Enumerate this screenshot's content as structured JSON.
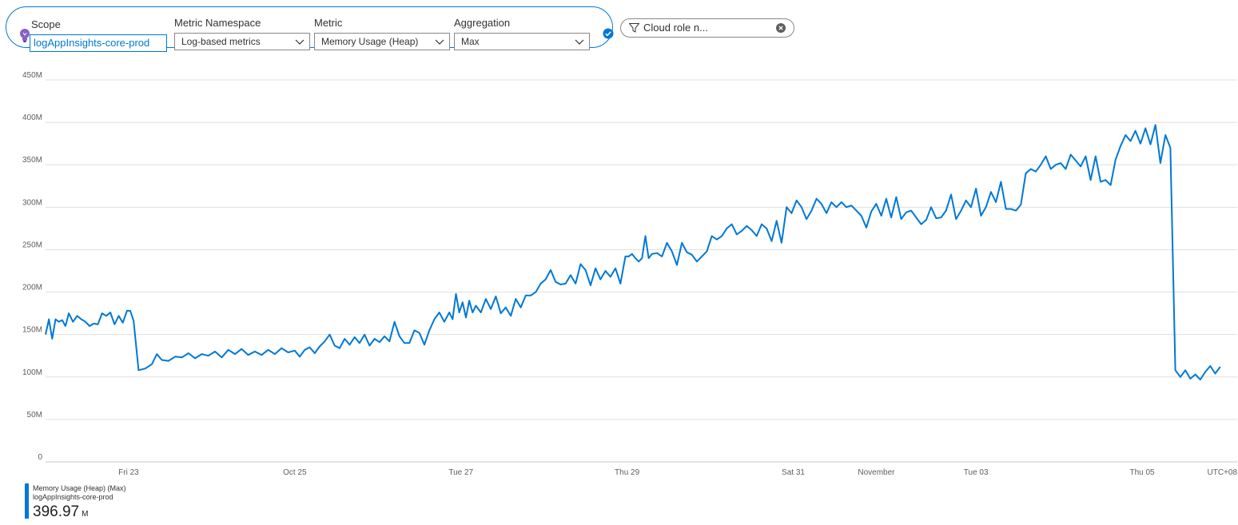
{
  "toolbar": {
    "scope": {
      "label": "Scope",
      "value": "logAppInsights-core-prod"
    },
    "namespace": {
      "label": "Metric Namespace",
      "value": "Log-based metrics"
    },
    "metric": {
      "label": "Metric",
      "value": "Memory Usage (Heap)"
    },
    "aggregation": {
      "label": "Aggregation",
      "value": "Max"
    },
    "filter": {
      "text": "Cloud role n... ",
      "value_obscured": true
    }
  },
  "icons": {
    "scope_icon": "lightbulb-icon",
    "confirm_icon": "check-circle-icon",
    "filter_icon": "funnel-icon",
    "filter_remove_icon": "close-circle-icon",
    "dropdown_icon": "chevron-down-icon"
  },
  "colors": {
    "accent": "#0078d4",
    "series": "#0078d4",
    "grid": "#e1dfdd",
    "bulb": "#8661c5"
  },
  "chart_data": {
    "type": "line",
    "ylim": [
      0,
      450
    ],
    "y_unit": "M",
    "yticks": [
      0,
      50,
      100,
      150,
      200,
      250,
      300,
      350,
      400,
      450
    ],
    "ytick_labels": [
      "0",
      "50M",
      "100M",
      "150M",
      "200M",
      "250M",
      "300M",
      "350M",
      "400M",
      "450M"
    ],
    "xlim": [
      0,
      14.2
    ],
    "xticks": [
      {
        "value": 1,
        "label": "Fri 23"
      },
      {
        "value": 3,
        "label": "Oct 25"
      },
      {
        "value": 5,
        "label": "Tue 27"
      },
      {
        "value": 7,
        "label": "Thu 29"
      },
      {
        "value": 9,
        "label": "Sat 31"
      },
      {
        "value": 10,
        "label": "November"
      },
      {
        "value": 11.2,
        "label": "Tue 03"
      },
      {
        "value": 13.2,
        "label": "Thu 05"
      }
    ],
    "timezone_label": "UTC+08",
    "grid": true,
    "legend_placement": "bottom-left",
    "series": [
      {
        "name": "Memory Usage (Heap) (Max)",
        "source": "logAppInsights-core-prod",
        "summary_value": "396.97",
        "summary_unit": "M",
        "points": [
          [
            0.0,
            150
          ],
          [
            0.04,
            168
          ],
          [
            0.08,
            145
          ],
          [
            0.12,
            168
          ],
          [
            0.16,
            165
          ],
          [
            0.2,
            167
          ],
          [
            0.24,
            160
          ],
          [
            0.28,
            175
          ],
          [
            0.33,
            165
          ],
          [
            0.38,
            172
          ],
          [
            0.43,
            168
          ],
          [
            0.48,
            165
          ],
          [
            0.53,
            160
          ],
          [
            0.58,
            163
          ],
          [
            0.63,
            162
          ],
          [
            0.68,
            175
          ],
          [
            0.73,
            172
          ],
          [
            0.78,
            176
          ],
          [
            0.83,
            162
          ],
          [
            0.88,
            172
          ],
          [
            0.93,
            164
          ],
          [
            0.98,
            178
          ],
          [
            1.02,
            178
          ],
          [
            1.06,
            166
          ],
          [
            1.12,
            108
          ],
          [
            1.2,
            110
          ],
          [
            1.28,
            115
          ],
          [
            1.34,
            127
          ],
          [
            1.4,
            120
          ],
          [
            1.48,
            119
          ],
          [
            1.56,
            124
          ],
          [
            1.64,
            123
          ],
          [
            1.72,
            128
          ],
          [
            1.8,
            122
          ],
          [
            1.88,
            127
          ],
          [
            1.96,
            125
          ],
          [
            2.04,
            130
          ],
          [
            2.12,
            123
          ],
          [
            2.2,
            132
          ],
          [
            2.28,
            127
          ],
          [
            2.36,
            133
          ],
          [
            2.44,
            126
          ],
          [
            2.52,
            130
          ],
          [
            2.6,
            126
          ],
          [
            2.68,
            132
          ],
          [
            2.76,
            127
          ],
          [
            2.84,
            134
          ],
          [
            2.92,
            129
          ],
          [
            3.0,
            131
          ],
          [
            3.06,
            124
          ],
          [
            3.12,
            132
          ],
          [
            3.18,
            135
          ],
          [
            3.24,
            128
          ],
          [
            3.3,
            136
          ],
          [
            3.36,
            142
          ],
          [
            3.42,
            150
          ],
          [
            3.48,
            137
          ],
          [
            3.54,
            134
          ],
          [
            3.6,
            145
          ],
          [
            3.66,
            138
          ],
          [
            3.72,
            147
          ],
          [
            3.78,
            140
          ],
          [
            3.84,
            150
          ],
          [
            3.9,
            137
          ],
          [
            3.96,
            145
          ],
          [
            4.02,
            141
          ],
          [
            4.08,
            148
          ],
          [
            4.14,
            142
          ],
          [
            4.2,
            165
          ],
          [
            4.26,
            148
          ],
          [
            4.32,
            140
          ],
          [
            4.38,
            140
          ],
          [
            4.44,
            155
          ],
          [
            4.5,
            152
          ],
          [
            4.56,
            138
          ],
          [
            4.62,
            155
          ],
          [
            4.68,
            168
          ],
          [
            4.74,
            176
          ],
          [
            4.8,
            165
          ],
          [
            4.86,
            176
          ],
          [
            4.9,
            168
          ],
          [
            4.94,
            198
          ],
          [
            4.98,
            176
          ],
          [
            5.02,
            188
          ],
          [
            5.06,
            170
          ],
          [
            5.1,
            190
          ],
          [
            5.14,
            176
          ],
          [
            5.18,
            184
          ],
          [
            5.24,
            176
          ],
          [
            5.3,
            192
          ],
          [
            5.36,
            180
          ],
          [
            5.42,
            195
          ],
          [
            5.48,
            175
          ],
          [
            5.54,
            182
          ],
          [
            5.6,
            172
          ],
          [
            5.66,
            192
          ],
          [
            5.72,
            182
          ],
          [
            5.78,
            196
          ],
          [
            5.84,
            196
          ],
          [
            5.9,
            200
          ],
          [
            5.96,
            210
          ],
          [
            6.02,
            215
          ],
          [
            6.08,
            226
          ],
          [
            6.14,
            212
          ],
          [
            6.2,
            209
          ],
          [
            6.26,
            210
          ],
          [
            6.32,
            220
          ],
          [
            6.38,
            210
          ],
          [
            6.44,
            233
          ],
          [
            6.5,
            226
          ],
          [
            6.56,
            208
          ],
          [
            6.62,
            228
          ],
          [
            6.68,
            215
          ],
          [
            6.74,
            225
          ],
          [
            6.8,
            218
          ],
          [
            6.86,
            228
          ],
          [
            6.92,
            210
          ],
          [
            6.98,
            242
          ],
          [
            7.02,
            242
          ],
          [
            7.06,
            245
          ],
          [
            7.1,
            240
          ],
          [
            7.14,
            236
          ],
          [
            7.18,
            240
          ],
          [
            7.22,
            266
          ],
          [
            7.26,
            240
          ],
          [
            7.3,
            245
          ],
          [
            7.36,
            246
          ],
          [
            7.42,
            242
          ],
          [
            7.48,
            258
          ],
          [
            7.54,
            248
          ],
          [
            7.6,
            232
          ],
          [
            7.66,
            258
          ],
          [
            7.72,
            247
          ],
          [
            7.78,
            244
          ],
          [
            7.84,
            236
          ],
          [
            7.9,
            242
          ],
          [
            7.96,
            248
          ],
          [
            8.02,
            266
          ],
          [
            8.08,
            262
          ],
          [
            8.14,
            266
          ],
          [
            8.2,
            275
          ],
          [
            8.26,
            280
          ],
          [
            8.32,
            268
          ],
          [
            8.38,
            272
          ],
          [
            8.44,
            278
          ],
          [
            8.5,
            273
          ],
          [
            8.56,
            266
          ],
          [
            8.62,
            280
          ],
          [
            8.68,
            275
          ],
          [
            8.74,
            260
          ],
          [
            8.8,
            284
          ],
          [
            8.86,
            258
          ],
          [
            8.92,
            300
          ],
          [
            8.98,
            293
          ],
          [
            9.04,
            308
          ],
          [
            9.1,
            300
          ],
          [
            9.16,
            286
          ],
          [
            9.22,
            296
          ],
          [
            9.28,
            310
          ],
          [
            9.34,
            304
          ],
          [
            9.4,
            293
          ],
          [
            9.46,
            306
          ],
          [
            9.52,
            300
          ],
          [
            9.58,
            306
          ],
          [
            9.64,
            300
          ],
          [
            9.7,
            302
          ],
          [
            9.76,
            296
          ],
          [
            9.82,
            290
          ],
          [
            9.88,
            276
          ],
          [
            9.94,
            295
          ],
          [
            10.0,
            304
          ],
          [
            10.06,
            290
          ],
          [
            10.12,
            310
          ],
          [
            10.18,
            288
          ],
          [
            10.24,
            312
          ],
          [
            10.3,
            286
          ],
          [
            10.36,
            294
          ],
          [
            10.42,
            296
          ],
          [
            10.48,
            288
          ],
          [
            10.54,
            280
          ],
          [
            10.6,
            285
          ],
          [
            10.66,
            300
          ],
          [
            10.72,
            287
          ],
          [
            10.78,
            288
          ],
          [
            10.84,
            296
          ],
          [
            10.9,
            315
          ],
          [
            10.96,
            286
          ],
          [
            11.02,
            296
          ],
          [
            11.08,
            308
          ],
          [
            11.14,
            300
          ],
          [
            11.2,
            322
          ],
          [
            11.26,
            290
          ],
          [
            11.32,
            300
          ],
          [
            11.38,
            318
          ],
          [
            11.44,
            306
          ],
          [
            11.5,
            330
          ],
          [
            11.56,
            298
          ],
          [
            11.62,
            298
          ],
          [
            11.68,
            296
          ],
          [
            11.74,
            303
          ],
          [
            11.8,
            340
          ],
          [
            11.86,
            345
          ],
          [
            11.92,
            342
          ],
          [
            11.98,
            350
          ],
          [
            12.04,
            360
          ],
          [
            12.1,
            345
          ],
          [
            12.16,
            350
          ],
          [
            12.22,
            352
          ],
          [
            12.28,
            345
          ],
          [
            12.34,
            362
          ],
          [
            12.4,
            355
          ],
          [
            12.46,
            348
          ],
          [
            12.52,
            360
          ],
          [
            12.58,
            332
          ],
          [
            12.64,
            360
          ],
          [
            12.7,
            330
          ],
          [
            12.76,
            332
          ],
          [
            12.82,
            326
          ],
          [
            12.88,
            356
          ],
          [
            12.94,
            372
          ],
          [
            13.0,
            385
          ],
          [
            13.06,
            378
          ],
          [
            13.12,
            390
          ],
          [
            13.18,
            375
          ],
          [
            13.24,
            393
          ],
          [
            13.3,
            374
          ],
          [
            13.36,
            397
          ],
          [
            13.42,
            352
          ],
          [
            13.48,
            385
          ],
          [
            13.54,
            370
          ],
          [
            13.6,
            108
          ],
          [
            13.66,
            100
          ],
          [
            13.72,
            108
          ],
          [
            13.78,
            98
          ],
          [
            13.84,
            103
          ],
          [
            13.9,
            97
          ],
          [
            13.96,
            106
          ],
          [
            14.02,
            113
          ],
          [
            14.08,
            104
          ],
          [
            14.14,
            112
          ]
        ]
      }
    ]
  }
}
